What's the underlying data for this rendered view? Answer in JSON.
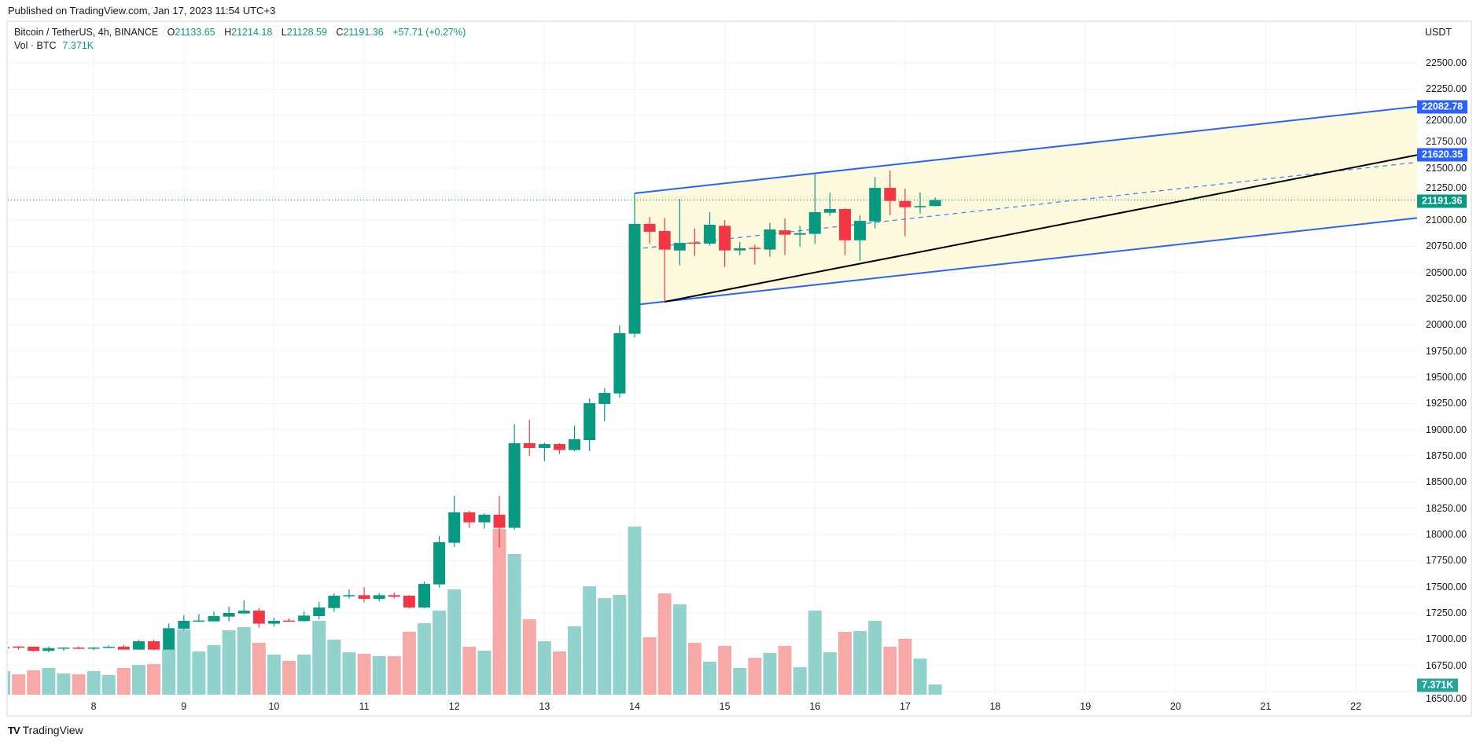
{
  "header": {
    "published": "Published on TradingView.com, Jan 17, 2023 11:54 UTC+3"
  },
  "legend": {
    "symbol": "Bitcoin / TetherUS, 4h, BINANCE",
    "o_label": "O",
    "o": "21133.65",
    "h_label": "H",
    "h": "21214.18",
    "l_label": "L",
    "l": "21128.59",
    "c_label": "C",
    "c": "21191.36",
    "change": "+57.71 (+0.27%)",
    "vol_label": "Vol · BTC",
    "vol": "7.371K"
  },
  "axis": {
    "currency": "USDT"
  },
  "badges": {
    "upper_channel": "22082.78",
    "trendline": "21620.35",
    "last_price": "21191.36",
    "volume": "7.371K"
  },
  "footer": {
    "logo_mark": "TV",
    "logo_text": "TradingView"
  },
  "colors": {
    "up": "#089981",
    "down": "#f23645",
    "vol_up": "#92d2cc",
    "vol_down": "#f7a9a7",
    "channel": "#2962ff",
    "channel_fill": "#fdf9dc",
    "trend": "#000000",
    "grid": "#f0f3fa"
  },
  "chart_data": {
    "type": "candlestick",
    "interval": "4h",
    "first_bar": "Jan 7 00:00",
    "ylim": [
      16500,
      22500
    ],
    "y_ticks": [
      "22500.00",
      "22250.00",
      "22000.00",
      "21750.00",
      "21500.00",
      "21250.00",
      "21000.00",
      "20750.00",
      "20500.00",
      "20250.00",
      "20000.00",
      "19750.00",
      "19500.00",
      "19250.00",
      "19000.00",
      "18750.00",
      "18500.00",
      "18250.00",
      "18000.00",
      "17750.00",
      "17500.00",
      "17250.00",
      "17000.00",
      "16750.00",
      "16500.00"
    ],
    "x_ticks": [
      "8",
      "9",
      "10",
      "11",
      "12",
      "13",
      "14",
      "15",
      "16",
      "17",
      "18",
      "19",
      "20",
      "21",
      "22"
    ],
    "x_tick_first_day": 8,
    "visible_bar_range": [
      0,
      94.07
    ],
    "ohlc": [
      [
        16920,
        16930,
        16915,
        16925
      ],
      [
        16930,
        16932,
        16900,
        16925
      ],
      [
        16928,
        16930,
        16880,
        16888
      ],
      [
        16888,
        16930,
        16875,
        16915
      ],
      [
        16915,
        16922,
        16890,
        16920
      ],
      [
        16920,
        16930,
        16905,
        16915
      ],
      [
        16915,
        16925,
        16895,
        16920
      ],
      [
        16918,
        16940,
        16915,
        16928
      ],
      [
        16928,
        16945,
        16900,
        16900
      ],
      [
        16900,
        16995,
        16900,
        16980
      ],
      [
        16980,
        16995,
        16893,
        16900
      ],
      [
        16900,
        17150,
        16900,
        17105
      ],
      [
        17100,
        17228,
        17088,
        17175
      ],
      [
        17172,
        17240,
        17165,
        17178
      ],
      [
        17170,
        17265,
        17168,
        17220
      ],
      [
        17215,
        17310,
        17170,
        17250
      ],
      [
        17245,
        17370,
        17245,
        17272
      ],
      [
        17272,
        17295,
        17110,
        17148
      ],
      [
        17148,
        17205,
        17120,
        17175
      ],
      [
        17178,
        17200,
        17170,
        17172
      ],
      [
        17172,
        17265,
        17168,
        17225
      ],
      [
        17220,
        17355,
        17190,
        17302
      ],
      [
        17297,
        17437,
        17260,
        17415
      ],
      [
        17410,
        17475,
        17388,
        17420
      ],
      [
        17420,
        17495,
        17350,
        17385
      ],
      [
        17385,
        17440,
        17362,
        17420
      ],
      [
        17420,
        17445,
        17388,
        17405
      ],
      [
        17415,
        17420,
        17295,
        17302
      ],
      [
        17302,
        17550,
        17295,
        17527
      ],
      [
        17523,
        17985,
        17493,
        17925
      ],
      [
        17920,
        18367,
        17880,
        18210
      ],
      [
        18210,
        18225,
        18063,
        18115
      ],
      [
        18115,
        18202,
        18055,
        18188
      ],
      [
        18188,
        18367,
        17875,
        18063
      ],
      [
        18063,
        19050,
        18045,
        18870
      ],
      [
        18870,
        19093,
        18750,
        18825
      ],
      [
        18825,
        18875,
        18700,
        18862
      ],
      [
        18862,
        18870,
        18767,
        18805
      ],
      [
        18805,
        19040,
        18795,
        18908
      ],
      [
        18900,
        19297,
        18795,
        19252
      ],
      [
        19245,
        19395,
        19080,
        19350
      ],
      [
        19345,
        19995,
        19305,
        19920
      ],
      [
        19915,
        21255,
        19882,
        20963
      ],
      [
        20963,
        21030,
        20775,
        20888
      ],
      [
        20895,
        21020,
        20220,
        20718
      ],
      [
        20710,
        21203,
        20568,
        20782
      ],
      [
        20785,
        20920,
        20657,
        20775
      ],
      [
        20775,
        21075,
        20755,
        20955
      ],
      [
        20945,
        21000,
        20552,
        20710
      ],
      [
        20710,
        20790,
        20665,
        20730
      ],
      [
        20735,
        20765,
        20575,
        20725
      ],
      [
        20718,
        20975,
        20650,
        20910
      ],
      [
        20902,
        21015,
        20665,
        20860
      ],
      [
        20860,
        20945,
        20747,
        20875
      ],
      [
        20868,
        21450,
        20770,
        21075
      ],
      [
        21070,
        21262,
        21040,
        21105
      ],
      [
        21105,
        21112,
        20665,
        20807
      ],
      [
        20807,
        21045,
        20612,
        20992
      ],
      [
        20987,
        21412,
        20920,
        21307
      ],
      [
        21307,
        21472,
        21047,
        21182
      ],
      [
        21182,
        21300,
        20845,
        21122
      ],
      [
        21122,
        21262,
        21062,
        21133.65
      ],
      [
        21133.65,
        21214.18,
        21128.59,
        21191.36
      ]
    ],
    "volume_k": [
      17.0,
      14.7,
      17.6,
      19.3,
      15.3,
      14.7,
      17.0,
      14.2,
      19.3,
      21.5,
      22.1,
      32.9,
      47.1,
      31.2,
      35.7,
      46.5,
      48.8,
      37.4,
      28.9,
      24.4,
      28.9,
      53.3,
      39.7,
      30.6,
      29.5,
      27.8,
      27.8,
      45.4,
      51.6,
      60.7,
      76.0,
      34.6,
      31.8,
      119.6,
      101.5,
      54.4,
      38.6,
      31.2,
      49.3,
      78.2,
      69.7,
      72.0,
      121.3,
      41.4,
      73.1,
      65.2,
      37.4,
      23.8,
      35.2,
      19.3,
      26.6,
      30.1,
      35.2,
      19.8,
      60.7,
      30.6,
      45.4,
      45.9,
      53.3,
      34.6,
      40.3,
      26.1,
      7.371
    ],
    "last_price": 21191.36,
    "drawings": {
      "channel_upper": [
        [
          42,
          21255
        ],
        [
          94.07,
          22082.78
        ]
      ],
      "channel_lower": [
        [
          42,
          20190
        ],
        [
          94.07,
          21020
        ]
      ],
      "trendline": [
        [
          44,
          20220
        ],
        [
          94.07,
          21620.35
        ]
      ]
    }
  }
}
